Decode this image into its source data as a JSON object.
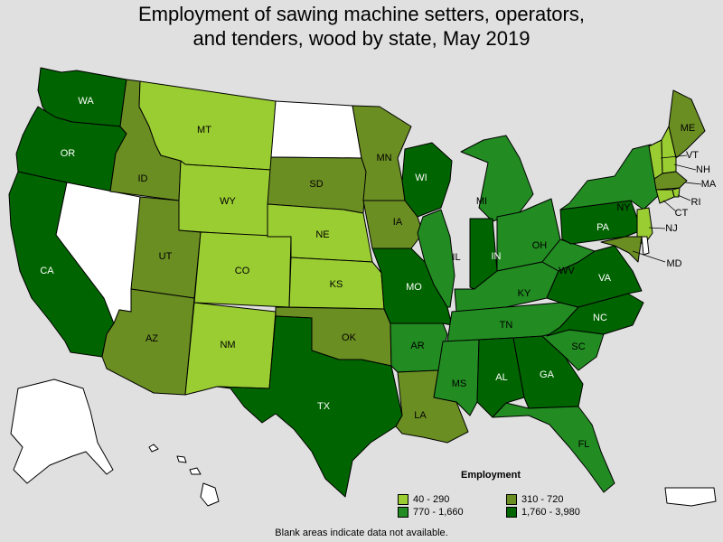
{
  "title_line1": "Employment of sawing machine setters, operators,",
  "title_line2": "and tenders, wood by state, May 2019",
  "legend": {
    "title": "Employment",
    "items": [
      {
        "label": "40 - 290",
        "color": "#9acd32"
      },
      {
        "label": "310 - 720",
        "color": "#6b8e23"
      },
      {
        "label": "770 - 1,660",
        "color": "#228b22"
      },
      {
        "label": "1,760 - 3,980",
        "color": "#006400"
      }
    ]
  },
  "note": "Blank areas indicate data not available.",
  "colors": {
    "no_data": "#ffffff",
    "background": "#e0e0e0"
  },
  "states": [
    {
      "abbr": "WA",
      "class": 3
    },
    {
      "abbr": "OR",
      "class": 3
    },
    {
      "abbr": "CA",
      "class": 3
    },
    {
      "abbr": "NV",
      "class": -1
    },
    {
      "abbr": "ID",
      "class": 1
    },
    {
      "abbr": "MT",
      "class": 0
    },
    {
      "abbr": "WY",
      "class": 0
    },
    {
      "abbr": "UT",
      "class": 1
    },
    {
      "abbr": "AZ",
      "class": 1
    },
    {
      "abbr": "CO",
      "class": 0
    },
    {
      "abbr": "NM",
      "class": 0
    },
    {
      "abbr": "ND",
      "class": -1
    },
    {
      "abbr": "SD",
      "class": 1
    },
    {
      "abbr": "NE",
      "class": 0
    },
    {
      "abbr": "KS",
      "class": 0
    },
    {
      "abbr": "OK",
      "class": 1
    },
    {
      "abbr": "TX",
      "class": 3
    },
    {
      "abbr": "MN",
      "class": 1
    },
    {
      "abbr": "IA",
      "class": 1
    },
    {
      "abbr": "MO",
      "class": 3
    },
    {
      "abbr": "AR",
      "class": 2
    },
    {
      "abbr": "LA",
      "class": 1
    },
    {
      "abbr": "WI",
      "class": 3
    },
    {
      "abbr": "IL",
      "class": 2
    },
    {
      "abbr": "MI",
      "class": 2
    },
    {
      "abbr": "IN",
      "class": 3
    },
    {
      "abbr": "OH",
      "class": 2
    },
    {
      "abbr": "KY",
      "class": 2
    },
    {
      "abbr": "TN",
      "class": 2
    },
    {
      "abbr": "MS",
      "class": 2
    },
    {
      "abbr": "AL",
      "class": 3
    },
    {
      "abbr": "GA",
      "class": 3
    },
    {
      "abbr": "FL",
      "class": 2
    },
    {
      "abbr": "SC",
      "class": 2
    },
    {
      "abbr": "NC",
      "class": 3
    },
    {
      "abbr": "VA",
      "class": 3
    },
    {
      "abbr": "WV",
      "class": 2
    },
    {
      "abbr": "PA",
      "class": 3
    },
    {
      "abbr": "NY",
      "class": 2
    },
    {
      "abbr": "ME",
      "class": 1
    },
    {
      "abbr": "VT",
      "class": 0
    },
    {
      "abbr": "NH",
      "class": 0
    },
    {
      "abbr": "MA",
      "class": 1
    },
    {
      "abbr": "RI",
      "class": 0
    },
    {
      "abbr": "CT",
      "class": 0
    },
    {
      "abbr": "NJ",
      "class": 0
    },
    {
      "abbr": "MD",
      "class": 1
    },
    {
      "abbr": "DE",
      "class": -1
    },
    {
      "abbr": "AK",
      "class": -1
    },
    {
      "abbr": "HI",
      "class": -1
    },
    {
      "abbr": "PR",
      "class": -1
    }
  ]
}
